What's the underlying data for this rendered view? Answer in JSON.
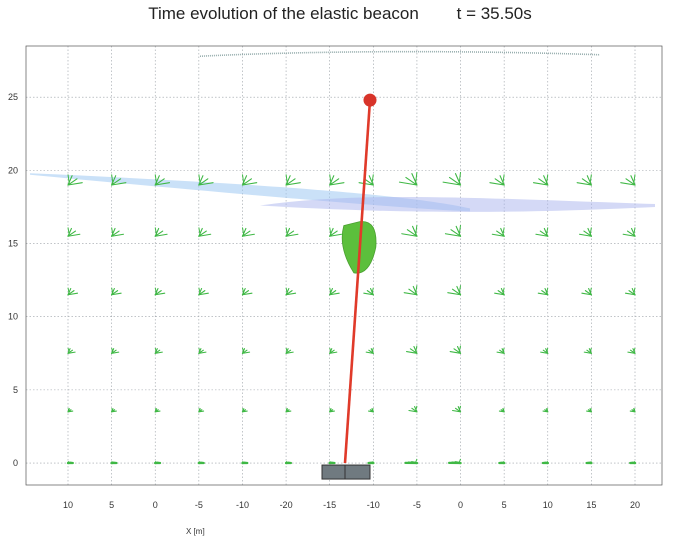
{
  "chart_data": {
    "type": "scatter",
    "title": "Time evolution of the elastic beacon",
    "time_label": "t = 35.50s",
    "xlabel": "X [m]",
    "ylabel": "",
    "x_tick_labels": [
      "10",
      "5",
      "0",
      "-5",
      "-10",
      "-20",
      "-15",
      "-10",
      "-5",
      "0",
      "5",
      "10",
      "15",
      "20"
    ],
    "y_ticks": [
      0,
      5,
      10,
      15,
      20,
      25
    ],
    "ylim": [
      -1.5,
      28.5
    ],
    "grid": true,
    "legend": "none",
    "colors": {
      "beacon_line": "#e03a2a",
      "beacon_float": "#d8342a",
      "buoy": "#5cbf3c",
      "anchor": "#707a80",
      "surface": "#9ec9f2",
      "surface2": "#a9b3ee",
      "velocity_vectors": "#3fb845",
      "grid": "#9aa0a6"
    },
    "beacon": {
      "base_y": 0,
      "top_y": 24.8,
      "buoy_y_range": [
        13,
        16.5
      ]
    },
    "free_surface_y": [
      19.8,
      19.3,
      18.5,
      17.7
    ]
  }
}
